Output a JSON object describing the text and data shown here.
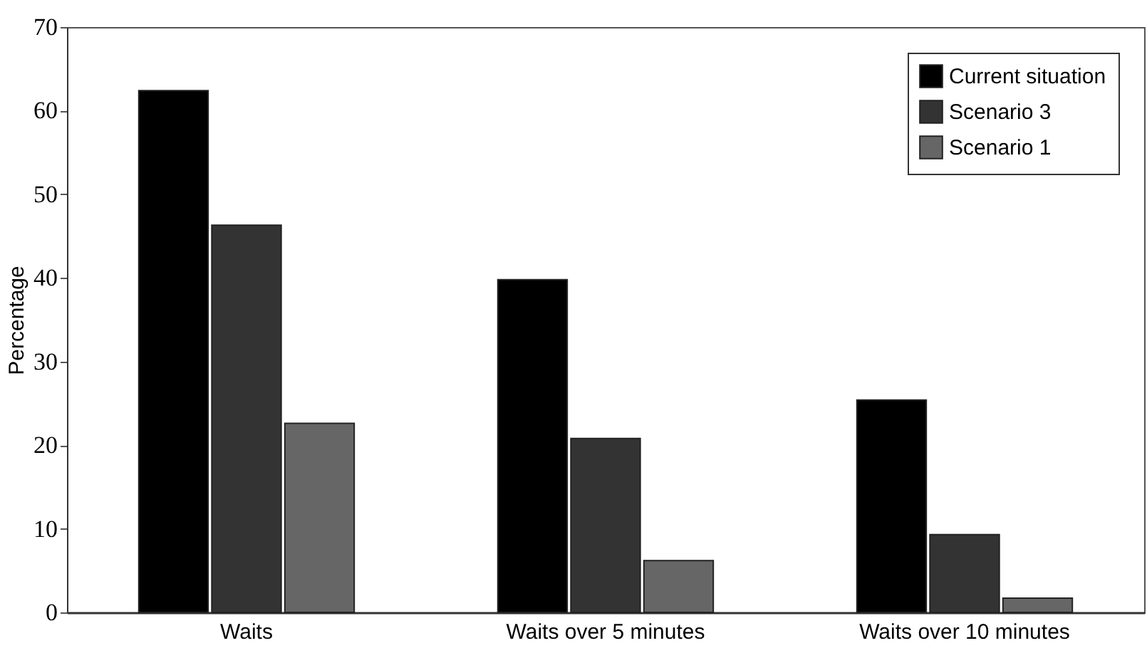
{
  "chart_data": {
    "type": "bar",
    "ylabel": "Percentage",
    "categories": [
      "Waits",
      "Waits over 5 minutes",
      "Waits over 10 minutes"
    ],
    "series": [
      {
        "name": "Current situation",
        "color": "#000000",
        "values": [
          62.4,
          39.8,
          25.4
        ]
      },
      {
        "name": "Scenario 3",
        "color": "#333333",
        "values": [
          46.3,
          20.8,
          9.3
        ]
      },
      {
        "name": "Scenario 1",
        "color": "#666666",
        "values": [
          22.6,
          6.2,
          1.7
        ]
      }
    ],
    "ylim": [
      0,
      70
    ],
    "yticks": [
      0,
      10,
      20,
      30,
      40,
      50,
      60,
      70
    ],
    "grid": false,
    "legend": "top right"
  }
}
